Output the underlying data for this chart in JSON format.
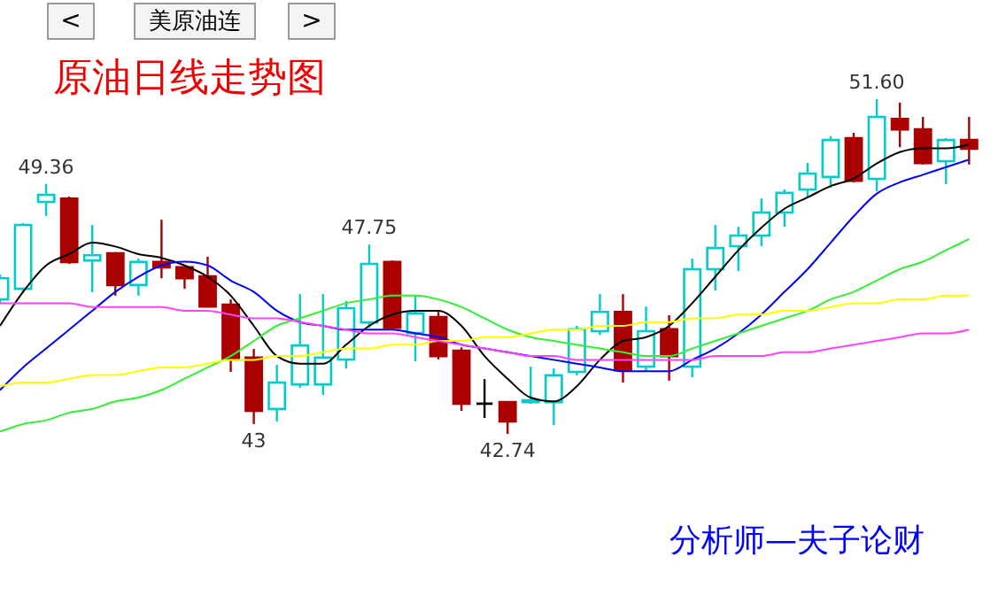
{
  "chart_data": {
    "type": "candlestick",
    "title": "原油日线走势图",
    "categories": [
      null,
      null,
      null,
      null,
      null,
      null,
      null,
      null,
      null,
      null,
      null,
      null,
      null,
      null,
      null,
      null,
      null,
      null,
      null,
      null,
      null,
      null,
      null,
      null,
      null,
      null,
      null,
      null,
      null,
      null,
      null,
      null,
      null,
      null,
      null,
      null,
      null,
      null,
      null,
      null,
      null,
      null,
      null
    ],
    "ohlc": [
      [
        46.3,
        46.96,
        46.21,
        46.86
      ],
      [
        46.58,
        48.32,
        46.49,
        48.27
      ],
      [
        48.88,
        49.36,
        48.51,
        49.07
      ],
      [
        48.97,
        49.02,
        47.24,
        47.29
      ],
      [
        47.33,
        48.27,
        46.49,
        47.47
      ],
      [
        47.52,
        47.55,
        46.4,
        46.68
      ],
      [
        46.68,
        47.38,
        46.4,
        47.29
      ],
      [
        47.29,
        48.41,
        46.86,
        47.15
      ],
      [
        47.15,
        47.15,
        46.58,
        46.86
      ],
      [
        46.91,
        47.43,
        46.11,
        46.11
      ],
      [
        46.16,
        46.3,
        44.38,
        44.71
      ],
      [
        44.76,
        44.99,
        43.0,
        43.35
      ],
      [
        43.4,
        44.57,
        43.07,
        44.1
      ],
      [
        44.05,
        46.44,
        43.96,
        45.08
      ],
      [
        44.05,
        46.44,
        43.77,
        44.76
      ],
      [
        44.71,
        46.26,
        44.47,
        46.07
      ],
      [
        45.69,
        47.75,
        45.55,
        47.24
      ],
      [
        47.29,
        47.33,
        45.5,
        45.55
      ],
      [
        45.41,
        46.4,
        44.66,
        45.93
      ],
      [
        45.83,
        45.97,
        44.71,
        44.8
      ],
      [
        44.94,
        45.03,
        43.35,
        43.54
      ],
      [
        43.54,
        44.19,
        43.16,
        43.54
      ],
      [
        43.58,
        43.6,
        42.74,
        43.07
      ],
      [
        43.58,
        44.52,
        43.54,
        43.63
      ],
      [
        43.58,
        44.47,
        42.97,
        44.29
      ],
      [
        44.38,
        45.6,
        44.29,
        45.51
      ],
      [
        45.46,
        46.44,
        45.36,
        45.97
      ],
      [
        45.97,
        46.44,
        44.1,
        44.43
      ],
      [
        44.52,
        46.11,
        44.38,
        45.46
      ],
      [
        45.51,
        45.88,
        44.15,
        44.8
      ],
      [
        44.52,
        47.38,
        44.24,
        47.1
      ],
      [
        47.1,
        48.27,
        46.54,
        47.66
      ],
      [
        47.71,
        48.22,
        47.05,
        47.99
      ],
      [
        47.99,
        48.97,
        47.71,
        48.6
      ],
      [
        48.6,
        49.21,
        48.22,
        49.12
      ],
      [
        49.21,
        49.91,
        49.02,
        49.63
      ],
      [
        49.54,
        50.62,
        49.26,
        50.52
      ],
      [
        50.57,
        50.71,
        49.4,
        49.44
      ],
      [
        49.49,
        51.6,
        49.16,
        51.13
      ],
      [
        51.08,
        51.51,
        50.33,
        50.8
      ],
      [
        50.8,
        51.13,
        49.87,
        49.91
      ],
      [
        49.96,
        50.57,
        49.35,
        50.52
      ],
      [
        50.52,
        51.13,
        49.87,
        50.29
      ]
    ],
    "colors": [
      "#00cccc",
      "#00cccc",
      "#00cccc",
      "#aa0000",
      "#00cccc",
      "#aa0000",
      "#00cccc",
      "#aa0000",
      "#aa0000",
      "#aa0000",
      "#aa0000",
      "#aa0000",
      "#00cccc",
      "#00cccc",
      "#00cccc",
      "#00cccc",
      "#00cccc",
      "#aa0000",
      "#00cccc",
      "#aa0000",
      "#aa0000",
      "#000000",
      "#aa0000",
      "#00cccc",
      "#00cccc",
      "#00cccc",
      "#00cccc",
      "#aa0000",
      "#00cccc",
      "#aa0000",
      "#00cccc",
      "#00cccc",
      "#00cccc",
      "#00cccc",
      "#00cccc",
      "#00cccc",
      "#00cccc",
      "#aa0000",
      "#00cccc",
      "#aa0000",
      "#aa0000",
      "#00cccc",
      "#aa0000"
    ],
    "series": [
      {
        "type": "line",
        "color": "#000000",
        "values": [
          45.6,
          46.5,
          47.2,
          47.5,
          47.8,
          47.7,
          47.5,
          47.4,
          47.2,
          46.9,
          46.4,
          45.6,
          44.8,
          44.6,
          44.6,
          45.1,
          45.6,
          45.9,
          46.0,
          46.0,
          45.6,
          44.8,
          44.2,
          43.7,
          43.6,
          44.0,
          44.7,
          45.2,
          45.3,
          45.6,
          46.2,
          46.9,
          47.6,
          48.2,
          48.7,
          49.0,
          49.3,
          49.5,
          49.9,
          50.2,
          50.3,
          50.3,
          50.4
        ]
      },
      {
        "type": "line",
        "color": "#0000ff",
        "values": [
          43.9,
          44.5,
          45.0,
          45.5,
          46.0,
          46.5,
          46.9,
          47.2,
          47.3,
          47.2,
          46.8,
          46.5,
          46.0,
          45.7,
          45.6,
          45.5,
          45.5,
          45.5,
          45.4,
          45.3,
          45.1,
          45.0,
          44.9,
          44.8,
          44.7,
          44.6,
          44.5,
          44.4,
          44.4,
          44.4,
          44.7,
          45.0,
          45.4,
          45.9,
          46.5,
          47.1,
          47.8,
          48.5,
          49.1,
          49.4,
          49.6,
          49.8,
          50.0
        ]
      },
      {
        "type": "line",
        "color": "#33ee33",
        "values": [
          42.8,
          43.0,
          43.1,
          43.3,
          43.4,
          43.6,
          43.7,
          43.9,
          44.2,
          44.5,
          44.8,
          45.2,
          45.6,
          45.8,
          46.0,
          46.2,
          46.3,
          46.4,
          46.4,
          46.3,
          46.1,
          45.8,
          45.5,
          45.3,
          45.2,
          45.1,
          45.0,
          44.9,
          44.8,
          44.8,
          45.0,
          45.2,
          45.4,
          45.6,
          45.8,
          46.0,
          46.3,
          46.5,
          46.8,
          47.1,
          47.3,
          47.6,
          47.9
        ]
      },
      {
        "type": "line",
        "color": "#ffff00",
        "values": [
          44.0,
          44.1,
          44.1,
          44.2,
          44.3,
          44.3,
          44.4,
          44.5,
          44.5,
          44.6,
          44.7,
          44.7,
          44.8,
          44.8,
          44.9,
          45.0,
          45.0,
          45.1,
          45.1,
          45.2,
          45.2,
          45.3,
          45.3,
          45.4,
          45.5,
          45.5,
          45.6,
          45.6,
          45.7,
          45.7,
          45.8,
          45.8,
          45.9,
          45.9,
          46.0,
          46.0,
          46.1,
          46.2,
          46.2,
          46.3,
          46.3,
          46.4,
          46.4
        ]
      },
      {
        "type": "line",
        "color": "#ff44ff",
        "values": [
          46.2,
          46.2,
          46.2,
          46.2,
          46.1,
          46.1,
          46.1,
          46.1,
          46.0,
          46.0,
          45.9,
          45.8,
          45.8,
          45.7,
          45.6,
          45.5,
          45.4,
          45.4,
          45.3,
          45.2,
          45.1,
          45.0,
          44.9,
          44.8,
          44.8,
          44.7,
          44.7,
          44.7,
          44.7,
          44.7,
          44.7,
          44.8,
          44.8,
          44.8,
          44.9,
          44.9,
          45.0,
          45.1,
          45.2,
          45.3,
          45.4,
          45.4,
          45.5
        ]
      }
    ],
    "annotations": [
      "<",
      "美原油连",
      ">",
      "分析师—夫子论财",
      {
        "text": "49.36",
        "y": 49.36
      },
      {
        "text": "43",
        "y": 43.0
      },
      {
        "text": "47.75",
        "y": 47.75
      },
      {
        "text": "42.74",
        "y": 42.74
      },
      {
        "text": "51.60",
        "y": 51.6
      }
    ]
  }
}
